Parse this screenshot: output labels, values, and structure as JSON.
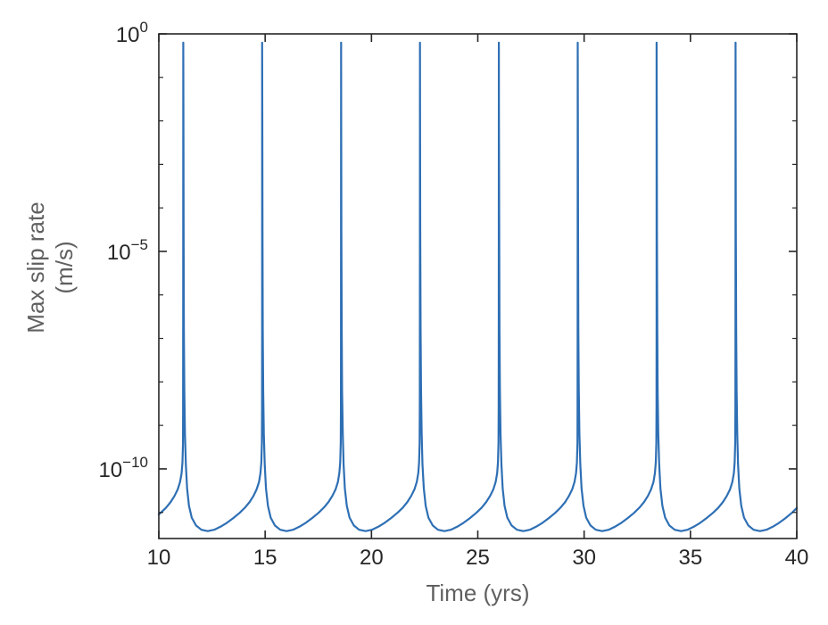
{
  "figure": {
    "background": "#ffffff",
    "xlabel": "Time (yrs)",
    "ylabel_line1": "Max slip rate",
    "ylabel_line2": "(m/s)"
  },
  "chart_data": {
    "type": "line",
    "title": "",
    "xlabel": "Time (yrs)",
    "ylabel": "Max slip rate (m/s)",
    "grid": false,
    "legend": null,
    "x_axis": {
      "scale": "linear",
      "lim": [
        10,
        40
      ],
      "ticks": [
        10,
        15,
        20,
        25,
        30,
        35,
        40
      ]
    },
    "y_axis": {
      "scale": "log",
      "lim_log10": [
        -11.6,
        0
      ],
      "tick_exponents": [
        0,
        -5,
        -10
      ],
      "minor_tick_exponents": [
        -1,
        -2,
        -3,
        -4,
        -6,
        -7,
        -8,
        -9,
        -11
      ]
    },
    "style": {
      "line_color": "#2e6fb4",
      "axis_color": "#262626",
      "tick_label_color": "#262626",
      "axis_label_color": "#606060"
    },
    "series": [
      {
        "name": "max-slip-rate",
        "color": "#2e6fb4",
        "period_yrs": 3.71,
        "peak_log10": -0.2,
        "interseismic_min_log10": -11.43,
        "spike_times_yrs": [
          11.15,
          14.86,
          18.57,
          22.28,
          25.99,
          29.7,
          33.41,
          37.12
        ],
        "cycle_shape_dt_yr_log10v": [
          [
            0.0,
            -0.2
          ],
          [
            0.006,
            -2.0
          ],
          [
            0.015,
            -4.5
          ],
          [
            0.03,
            -6.8
          ],
          [
            0.05,
            -8.2
          ],
          [
            0.08,
            -9.2
          ],
          [
            0.12,
            -9.9
          ],
          [
            0.18,
            -10.45
          ],
          [
            0.27,
            -10.85
          ],
          [
            0.4,
            -11.12
          ],
          [
            0.6,
            -11.3
          ],
          [
            0.85,
            -11.4
          ],
          [
            1.15,
            -11.43
          ],
          [
            1.45,
            -11.4
          ],
          [
            1.75,
            -11.33
          ],
          [
            2.05,
            -11.24
          ],
          [
            2.35,
            -11.13
          ],
          [
            2.65,
            -11.01
          ],
          [
            2.9,
            -10.89
          ],
          [
            3.12,
            -10.76
          ],
          [
            3.3,
            -10.62
          ],
          [
            3.45,
            -10.47
          ],
          [
            3.56,
            -10.3
          ],
          [
            3.63,
            -10.1
          ],
          [
            3.67,
            -9.85
          ],
          [
            3.695,
            -9.4
          ],
          [
            3.703,
            -8.6
          ],
          [
            3.707,
            -6.5
          ],
          [
            3.71,
            -0.2
          ]
        ]
      }
    ]
  }
}
